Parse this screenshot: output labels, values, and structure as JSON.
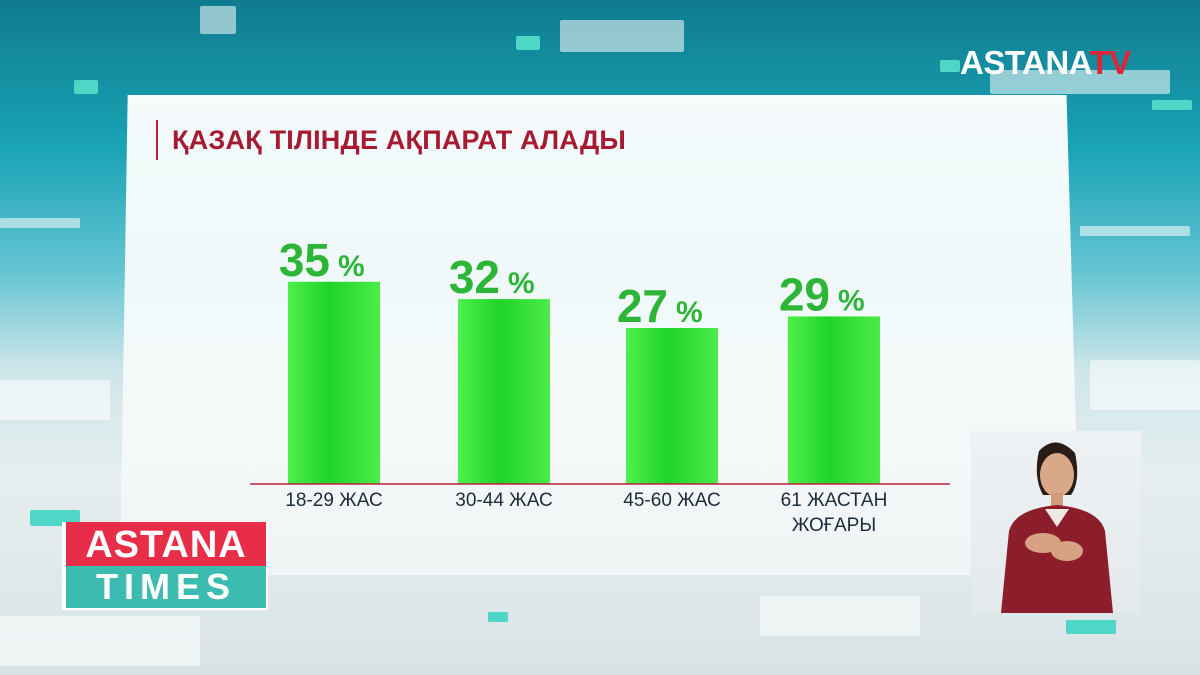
{
  "logo": {
    "main": "ASTANA",
    "suffix": "TV"
  },
  "title": "ҚАЗАҚ ТІЛІНДЕ АҚПАРАТ АЛАДЫ",
  "program": {
    "line1": "ASTANA",
    "line2": "TIMES"
  },
  "colors": {
    "bar": "#22d62a",
    "value": "#2db537",
    "title": "#a61b31",
    "baseline": "#c0203a"
  },
  "chart_data": {
    "type": "bar",
    "title": "ҚАЗАҚ ТІЛІНДЕ АҚПАРАТ АЛАДЫ",
    "categories": [
      "18-29 ЖАС",
      "30-44 ЖАС",
      "45-60 ЖАС",
      "61 ЖАСТАН ЖОҒАРЫ"
    ],
    "category_lines": [
      [
        "18-29 ЖАС"
      ],
      [
        "30-44 ЖАС"
      ],
      [
        "45-60 ЖАС"
      ],
      [
        "61 ЖАСТАН",
        "ЖОҒАРЫ"
      ]
    ],
    "values": [
      35,
      32,
      27,
      29
    ],
    "value_labels": [
      "35",
      "32",
      "27",
      "29"
    ],
    "unit": "%",
    "ylim": [
      0,
      45
    ],
    "grid": false,
    "legend": "none"
  }
}
